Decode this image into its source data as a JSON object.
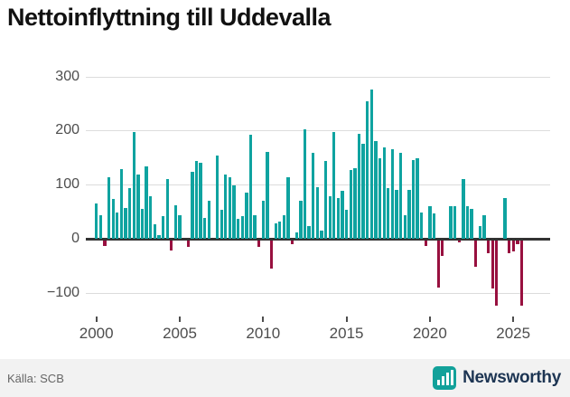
{
  "title": "Nettoinflyttning till Uddevalla",
  "footer": {
    "source_label": "Källa: SCB",
    "brand": "Newsworthy"
  },
  "colors": {
    "positive_bar": "#0FA3A0",
    "negative_bar": "#98103F",
    "gridline": "#DCDCDC",
    "zero_line": "#323232",
    "axis_text": "#4D4D4D",
    "title_text": "#111111",
    "footer_bg": "#F2F2F2",
    "footer_text": "#666666",
    "brand_text": "#1D3553",
    "brand_logo": "#12A19A"
  },
  "chart_data": {
    "type": "bar",
    "title": "Nettoinflyttning till Uddevalla",
    "xlabel": "",
    "ylabel": "",
    "frequency": "quarterly",
    "start_period": "2000Q1",
    "end_period": "2025Q3",
    "y_ticks": [
      300,
      200,
      100,
      0,
      -100
    ],
    "x_ticks": [
      2000,
      2005,
      2010,
      2015,
      2020,
      2025
    ],
    "ylim": [
      -140,
      310
    ],
    "grid": true,
    "legend": false,
    "values": [
      65,
      44,
      -11,
      113,
      74,
      49,
      129,
      57,
      93,
      198,
      119,
      55,
      133,
      78,
      26,
      7,
      42,
      111,
      -19,
      62,
      43,
      0,
      -13,
      124,
      143,
      140,
      39,
      71,
      0,
      153,
      54,
      119,
      114,
      99,
      37,
      42,
      85,
      192,
      43,
      -12,
      71,
      160,
      -52,
      29,
      31,
      44,
      113,
      -8,
      12,
      71,
      202,
      23,
      159,
      95,
      15,
      144,
      79,
      198,
      75,
      88,
      53,
      127,
      130,
      194,
      176,
      254,
      276,
      180,
      149,
      169,
      94,
      166,
      90,
      158,
      43,
      90,
      145,
      149,
      49,
      -11,
      61,
      47,
      -88,
      -29,
      0,
      61,
      60,
      -5,
      111,
      61,
      55,
      -50,
      23,
      43,
      -25,
      -90,
      -122,
      0,
      76,
      -25,
      -21,
      -8,
      -122
    ]
  }
}
